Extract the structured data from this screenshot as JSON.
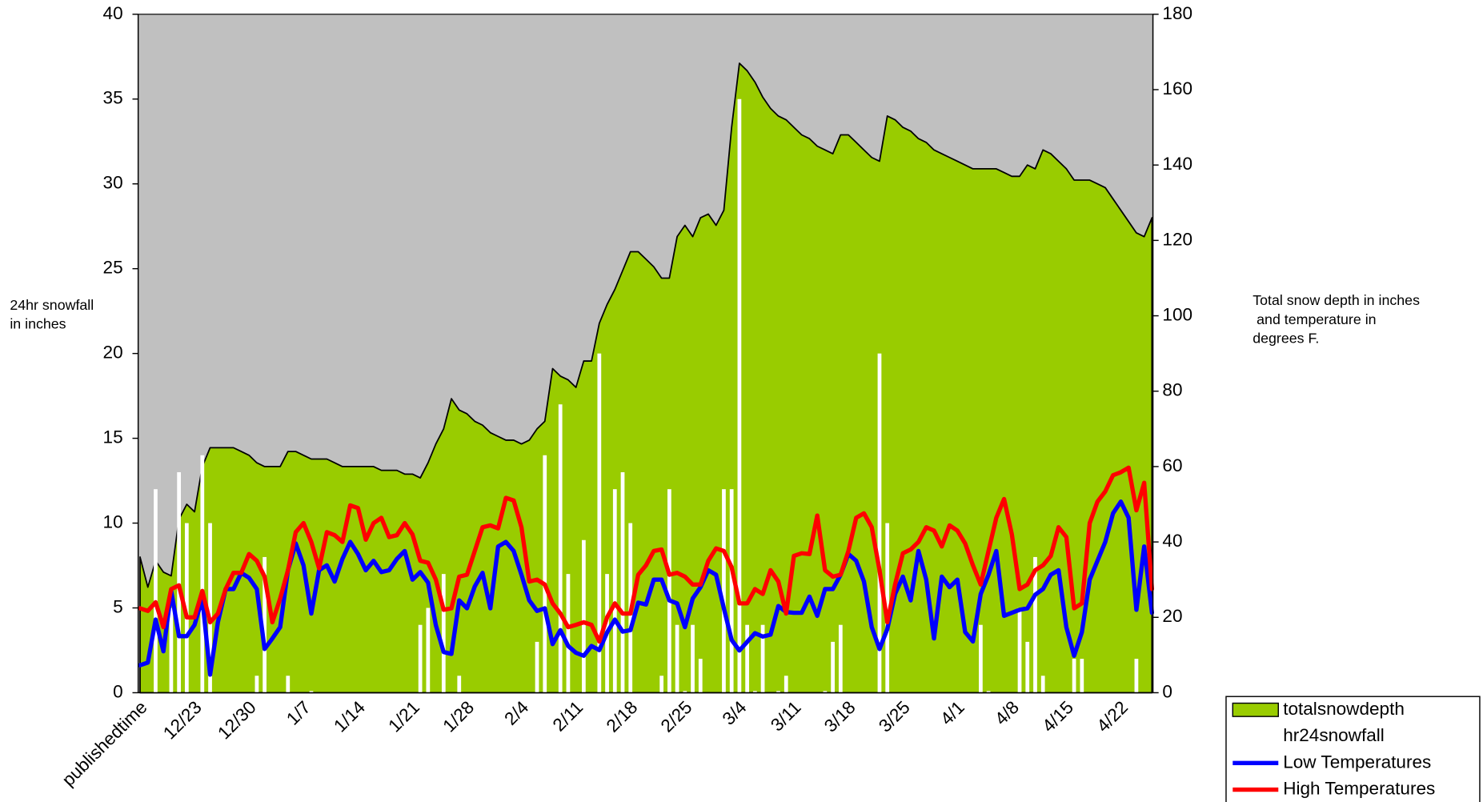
{
  "chart_data": {
    "type": "combo",
    "ylabel": [
      "24hr snowfall",
      "in inches"
    ],
    "y2label": [
      "Total snow depth in inches",
      " and temperature in",
      "degrees F."
    ],
    "categories": [
      "publishedtime",
      null,
      null,
      null,
      null,
      null,
      null,
      "12/23",
      null,
      null,
      null,
      null,
      null,
      null,
      "12/30",
      null,
      null,
      null,
      null,
      null,
      null,
      "1/7",
      null,
      null,
      null,
      null,
      null,
      null,
      "1/14",
      null,
      null,
      null,
      null,
      null,
      null,
      "1/21",
      null,
      null,
      null,
      null,
      null,
      null,
      "1/28",
      null,
      null,
      null,
      null,
      null,
      null,
      "2/4",
      null,
      null,
      null,
      null,
      null,
      null,
      "2/11",
      null,
      null,
      null,
      null,
      null,
      null,
      "2/18",
      null,
      null,
      null,
      null,
      null,
      null,
      "2/25",
      null,
      null,
      null,
      null,
      null,
      null,
      "3/4",
      null,
      null,
      null,
      null,
      null,
      null,
      "3/11",
      null,
      null,
      null,
      null,
      null,
      null,
      "3/18",
      null,
      null,
      null,
      null,
      null,
      null,
      "3/25",
      null,
      null,
      null,
      null,
      null,
      null,
      "4/1",
      null,
      null,
      null,
      null,
      null,
      null,
      "4/8",
      null,
      null,
      null,
      null,
      null,
      null,
      "4/15",
      null,
      null,
      null,
      null,
      null,
      null,
      "4/22",
      null,
      null,
      null,
      null
    ],
    "ylim": [
      0,
      40
    ],
    "yticks": [
      0,
      5,
      10,
      15,
      20,
      25,
      30,
      35,
      40
    ],
    "y2lim": [
      0,
      180
    ],
    "y2ticks": [
      0,
      20,
      40,
      60,
      80,
      100,
      120,
      140,
      160,
      180
    ],
    "plot_background": "#c0c0c0",
    "legend": "bottom-right",
    "series": [
      {
        "name": "totalsnowdepth",
        "type": "area",
        "axis": "y2",
        "color": "#99cc00",
        "values": [
          36,
          28,
          35,
          32,
          31,
          46,
          50,
          48,
          60,
          65,
          65,
          65,
          65,
          64,
          63,
          61,
          60,
          60,
          60,
          64,
          64,
          63,
          62,
          62,
          62,
          61,
          60,
          60,
          60,
          60,
          60,
          59,
          59,
          59,
          58,
          58,
          57,
          61,
          66,
          70,
          78,
          75,
          74,
          72,
          71,
          69,
          68,
          67,
          67,
          66,
          67,
          70,
          72,
          86,
          84,
          83,
          81,
          88,
          88,
          98,
          103,
          107,
          112,
          117,
          117,
          115,
          113,
          110,
          110,
          121,
          124,
          121,
          126,
          127,
          124,
          128,
          150,
          167,
          165,
          162,
          158,
          155,
          153,
          152,
          150,
          148,
          147,
          145,
          144,
          143,
          148,
          148,
          146,
          144,
          142,
          141,
          153,
          152,
          150,
          149,
          147,
          146,
          144,
          143,
          142,
          141,
          140,
          139,
          139,
          139,
          139,
          138,
          137,
          137,
          140,
          139,
          144,
          143,
          141,
          139,
          136,
          136,
          136,
          135,
          134,
          131,
          128,
          125,
          122,
          121,
          126
        ]
      },
      {
        "name": "hr24snowfall",
        "type": "bar",
        "axis": "y",
        "color": "#ffffff",
        "values": [
          0,
          0,
          12,
          0,
          5,
          13,
          10,
          0,
          14,
          10,
          0,
          0,
          0,
          0,
          0,
          1,
          8,
          0,
          0,
          1,
          0,
          0,
          0.1,
          0,
          0,
          0,
          0,
          0,
          0,
          0,
          0,
          0,
          0,
          0,
          0,
          0,
          4,
          5,
          0,
          7,
          0,
          1,
          0,
          0,
          0,
          0,
          0,
          0,
          0,
          0,
          0,
          3,
          14,
          0,
          17,
          7,
          0,
          9,
          0,
          20,
          7,
          12,
          13,
          10,
          0,
          0,
          0,
          1,
          12,
          4,
          0.1,
          4,
          2,
          0,
          0,
          12,
          12,
          35,
          4,
          0.1,
          4,
          0,
          0.1,
          1,
          0,
          0,
          0,
          0,
          0.1,
          3,
          4,
          0,
          0,
          0,
          0,
          20,
          10,
          0,
          0,
          0,
          0,
          0,
          0,
          0,
          0,
          0,
          0,
          0,
          4,
          0.1,
          0,
          0,
          0,
          5,
          3,
          8,
          1,
          0,
          0,
          0,
          2,
          2,
          0,
          0,
          0,
          0,
          0,
          0,
          2,
          0,
          0
        ]
      },
      {
        "name": "Low Temperatures",
        "type": "line",
        "axis": "y2",
        "color": "#0000ff",
        "values": [
          7.3,
          8,
          19.4,
          11,
          27,
          15,
          15,
          18,
          25,
          4.8,
          18.7,
          27.5,
          27.5,
          31.8,
          30.5,
          27.5,
          11.6,
          14.4,
          17.4,
          32.5,
          39.6,
          33.8,
          21,
          32.5,
          33.8,
          29.5,
          35.5,
          40,
          36.8,
          32.5,
          35,
          32,
          32.5,
          35.5,
          37.6,
          30,
          32,
          29.2,
          17.9,
          10.8,
          10.3,
          24.5,
          22.4,
          28.2,
          31.8,
          22.4,
          38.8,
          40,
          37.6,
          31.3,
          24.5,
          21.7,
          22.4,
          12.9,
          16.6,
          12.4,
          10.6,
          9.8,
          12.4,
          11.3,
          16,
          19.4,
          16.2,
          16.6,
          23.9,
          23.4,
          30,
          30,
          24.5,
          23.7,
          17.4,
          25,
          28,
          32.5,
          31.3,
          22.4,
          14,
          11.2,
          13.5,
          15.8,
          14.9,
          15.4,
          23,
          21.4,
          21.2,
          21.2,
          25.5,
          20.4,
          27.5,
          27.5,
          31.3,
          36.8,
          35,
          29.5,
          17.4,
          11.6,
          16.9,
          26.2,
          30.8,
          24.5,
          37.6,
          30,
          14.4,
          30.8,
          28,
          30,
          16.1,
          13.6,
          26.2,
          31.3,
          37.6,
          20.4,
          21.2,
          22,
          22.4,
          26,
          27.5,
          31.3,
          32.5,
          17.4,
          9.8,
          16.1,
          30,
          35,
          40,
          47.6,
          50.7,
          46.4,
          22,
          38.8,
          21.2
        ]
      },
      {
        "name": "High Temperatures",
        "type": "line",
        "axis": "y2",
        "color": "#ff0000",
        "values": [
          22.4,
          21.7,
          24,
          17.4,
          27.5,
          28.5,
          20,
          20,
          27,
          18.7,
          21,
          27.5,
          31.8,
          31.8,
          36.8,
          35,
          30.8,
          18.7,
          25,
          32.5,
          42.6,
          45,
          40,
          33,
          42.6,
          41.8,
          40,
          49.7,
          49,
          40.6,
          45,
          46.4,
          41.3,
          41.8,
          45,
          42,
          35,
          34.5,
          30,
          22,
          22.4,
          30.8,
          31.3,
          37.6,
          43.9,
          44.4,
          43.6,
          51.7,
          51,
          43.9,
          29.5,
          30,
          28.7,
          23.7,
          21,
          17.4,
          18,
          18.7,
          18,
          13.6,
          20,
          23.7,
          21,
          21,
          31.3,
          33.8,
          37.6,
          38,
          31.3,
          31.8,
          30.8,
          28.7,
          28.7,
          35,
          38.3,
          37.6,
          33.3,
          23.7,
          23.7,
          27.5,
          26.2,
          32.5,
          29.5,
          21,
          36.3,
          37,
          36.8,
          47,
          32.5,
          30.8,
          31.3,
          37.6,
          46.4,
          47.6,
          43.9,
          32.5,
          18.7,
          28.7,
          37,
          38,
          40,
          43.9,
          43,
          38.8,
          44.4,
          43,
          39.6,
          33.8,
          28.7,
          37.6,
          46.4,
          51.4,
          42,
          27.5,
          28.7,
          32.5,
          33.8,
          36.3,
          43.9,
          41.3,
          22.4,
          23.7,
          45,
          50.7,
          53.4,
          57.7,
          58.5,
          59.7,
          48.4,
          55.7,
          27.5
        ]
      }
    ]
  }
}
